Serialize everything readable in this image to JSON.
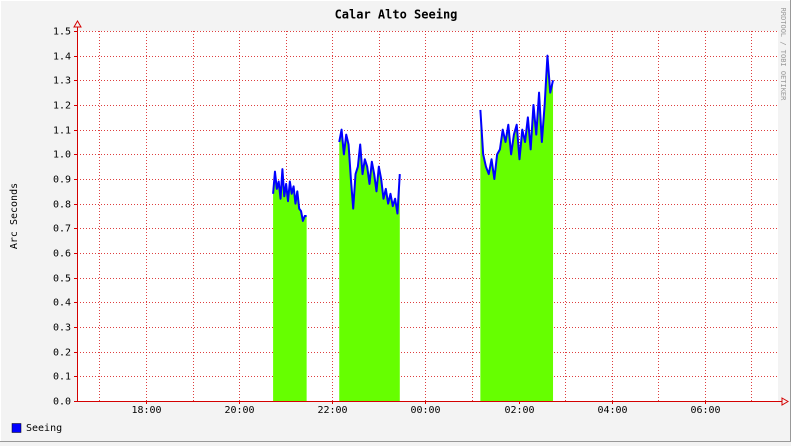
{
  "chart_data": {
    "type": "area",
    "title": "Calar Alto Seeing",
    "y_label": "Arc Seconds",
    "watermark": "RRDTOOL / TOBI OETIKER",
    "xlim": [
      16.52,
      31.57
    ],
    "xticks": [
      {
        "value": 18,
        "label": "18:00"
      },
      {
        "value": 20,
        "label": "20:00"
      },
      {
        "value": 22,
        "label": "22:00"
      },
      {
        "value": 24,
        "label": "00:00"
      },
      {
        "value": 26,
        "label": "02:00"
      },
      {
        "value": 28,
        "label": "04:00"
      },
      {
        "value": 30,
        "label": "06:00"
      }
    ],
    "x_minor_ticks": [
      17,
      19,
      21,
      23,
      25,
      27,
      29,
      31
    ],
    "ylim": [
      0,
      1.5
    ],
    "yticks": [
      {
        "value": 0,
        "label": "0.0"
      },
      0.1,
      0.2,
      0.3,
      0.4,
      0.5,
      0.6,
      0.7,
      0.8,
      0.9,
      {
        "value": 1,
        "label": "1.0"
      },
      1.1,
      1.2,
      1.3,
      1.4,
      1.5
    ],
    "grid": true,
    "legend": "bottom-left",
    "area_color": "#66ff00",
    "x": [
      20.73,
      20.77,
      20.81,
      20.85,
      20.89,
      20.93,
      20.97,
      21.01,
      21.05,
      21.09,
      21.13,
      21.17,
      21.21,
      21.25,
      21.29,
      21.33,
      21.37,
      21.41,
      21.45,
      21.8,
      22.15,
      22.2,
      22.25,
      22.3,
      22.35,
      22.4,
      22.45,
      22.5,
      22.55,
      22.6,
      22.65,
      22.7,
      22.75,
      22.8,
      22.85,
      22.9,
      22.95,
      23.0,
      23.05,
      23.1,
      23.15,
      23.2,
      23.25,
      23.3,
      23.35,
      23.4,
      23.45,
      24.3,
      25.18,
      25.24,
      25.3,
      25.36,
      25.42,
      25.48,
      25.54,
      25.6,
      25.66,
      25.72,
      25.78,
      25.84,
      25.9,
      25.96,
      26.02,
      26.08,
      26.14,
      26.2,
      26.26,
      26.32,
      26.38,
      26.44,
      26.5,
      26.56,
      26.62,
      26.68,
      26.74
    ],
    "series": [
      {
        "name": "Seeing",
        "color": "#0000ff",
        "values": [
          0.84,
          0.93,
          0.86,
          0.89,
          0.82,
          0.94,
          0.83,
          0.88,
          0.81,
          0.89,
          0.84,
          0.87,
          0.8,
          0.85,
          0.78,
          0.77,
          0.73,
          0.75,
          0.75,
          null,
          1.05,
          1.1,
          1.0,
          1.08,
          1.04,
          0.9,
          0.78,
          0.92,
          0.95,
          1.04,
          0.92,
          0.98,
          0.95,
          0.88,
          0.97,
          0.92,
          0.85,
          0.95,
          0.9,
          0.82,
          0.86,
          0.8,
          0.84,
          0.79,
          0.82,
          0.76,
          0.92,
          null,
          1.18,
          1.0,
          0.95,
          0.92,
          0.98,
          0.9,
          1.0,
          1.02,
          1.1,
          1.05,
          1.12,
          1.0,
          1.08,
          1.12,
          0.98,
          1.1,
          1.05,
          1.15,
          1.02,
          1.2,
          1.08,
          1.25,
          1.05,
          1.2,
          1.4,
          1.25,
          1.3
        ]
      }
    ]
  }
}
